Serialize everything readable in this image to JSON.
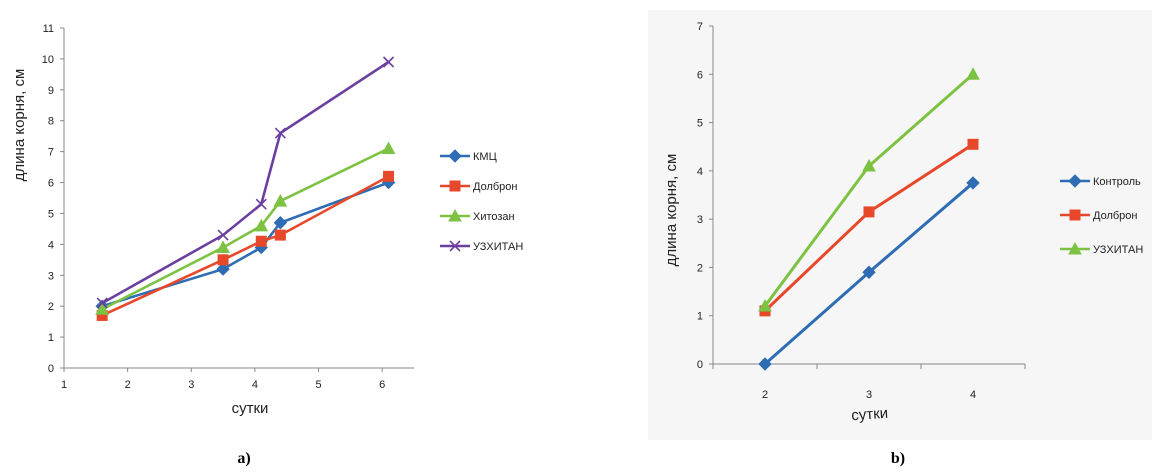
{
  "chart_data": [
    {
      "type": "line",
      "panel_label": "a)",
      "xlabel": "сутки",
      "ylabel": "длина корня, см",
      "xlim": [
        1,
        6.5
      ],
      "ylim": [
        0,
        11
      ],
      "xticks": [
        1,
        2,
        3,
        4,
        5,
        6
      ],
      "yticks": [
        0,
        1,
        2,
        3,
        4,
        5,
        6,
        7,
        8,
        9,
        10,
        11
      ],
      "grid": false,
      "legend_position": "right",
      "series": [
        {
          "name": "КМЦ",
          "color": "#2E6DB4",
          "marker": "diamond",
          "x": [
            1.6,
            3.5,
            4.1,
            4.4,
            6.1
          ],
          "y": [
            2.0,
            3.2,
            3.9,
            4.7,
            6.0
          ]
        },
        {
          "name": "Долброн",
          "color": "#E8482A",
          "marker": "square",
          "x": [
            1.6,
            3.5,
            4.1,
            4.4,
            6.1
          ],
          "y": [
            1.7,
            3.5,
            4.1,
            4.3,
            6.2
          ]
        },
        {
          "name": "Хитозан",
          "color": "#7DC242",
          "marker": "triangle",
          "x": [
            1.6,
            3.5,
            4.1,
            4.4,
            6.1
          ],
          "y": [
            1.9,
            3.9,
            4.6,
            5.4,
            7.1
          ]
        },
        {
          "name": "УЗХИТАН",
          "color": "#6B3FA0",
          "marker": "x",
          "x": [
            1.6,
            3.5,
            4.1,
            4.4,
            6.1
          ],
          "y": [
            2.1,
            4.3,
            5.3,
            7.6,
            9.9
          ]
        }
      ]
    },
    {
      "type": "line",
      "panel_label": "b)",
      "xlabel": "сутки",
      "ylabel": "длина корня, см",
      "categories": [
        "2",
        "3",
        "4"
      ],
      "ylim": [
        0,
        7
      ],
      "yticks": [
        0,
        1,
        2,
        3,
        4,
        5,
        6,
        7
      ],
      "grid": false,
      "legend_position": "right",
      "series": [
        {
          "name": "Контроль",
          "color": "#2E6DB4",
          "marker": "diamond",
          "values": [
            0.0,
            1.9,
            3.75
          ]
        },
        {
          "name": "Долброн",
          "color": "#E8482A",
          "marker": "square",
          "values": [
            1.1,
            3.15,
            4.55
          ]
        },
        {
          "name": "УЗХИТАН",
          "color": "#7DC242",
          "marker": "triangle",
          "values": [
            1.2,
            4.1,
            6.0
          ]
        }
      ]
    }
  ]
}
